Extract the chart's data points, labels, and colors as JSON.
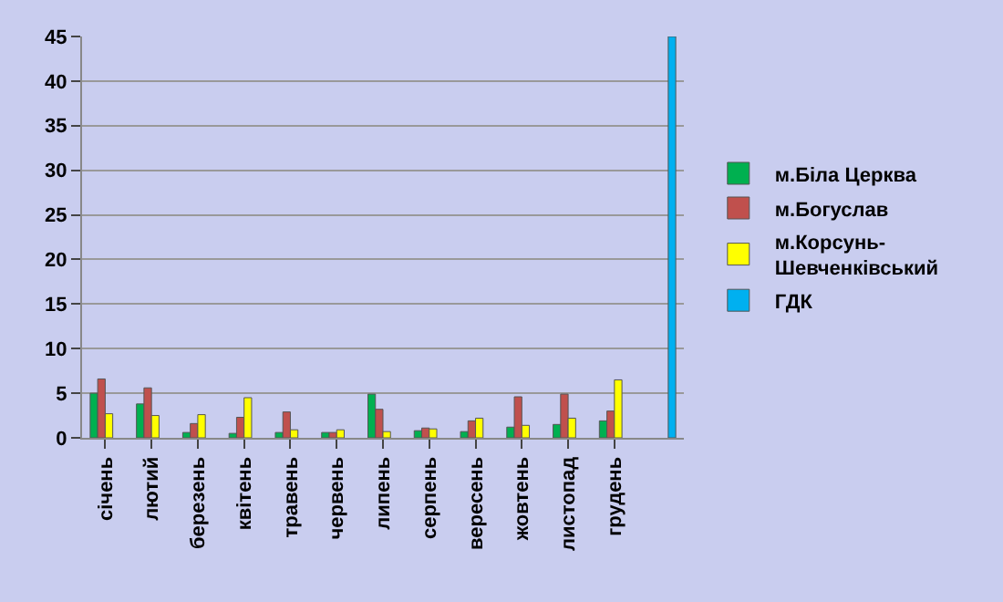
{
  "chart_data": {
    "type": "bar",
    "categories": [
      "січень",
      "лютий",
      "березень",
      "квітень",
      "травень",
      "червень",
      "липень",
      "серпень",
      "вересень",
      "жовтень",
      "листопад",
      "грудень",
      null
    ],
    "series": [
      {
        "name": "м.Біла Церква",
        "color": "#00b050",
        "values": [
          5.0,
          3.8,
          0.6,
          0.5,
          0.6,
          0.6,
          4.9,
          0.8,
          0.7,
          1.2,
          1.5,
          1.9,
          null
        ]
      },
      {
        "name": "м.Богуслав",
        "color": "#c0504d",
        "values": [
          6.6,
          5.6,
          1.6,
          2.3,
          2.9,
          0.6,
          3.2,
          1.1,
          1.9,
          4.6,
          4.9,
          3.0,
          null
        ]
      },
      {
        "name": "м.Корсунь-Шевченківський",
        "color": "#ffff00",
        "values": [
          2.7,
          2.5,
          2.6,
          4.5,
          0.9,
          0.9,
          0.7,
          1.0,
          2.2,
          1.4,
          2.2,
          6.5,
          null
        ]
      },
      {
        "name": "ГДК",
        "color": "#00b0f0",
        "values": [
          null,
          null,
          null,
          null,
          null,
          null,
          null,
          null,
          null,
          null,
          null,
          null,
          45
        ]
      }
    ],
    "ylim": [
      0,
      45
    ],
    "yticks": [
      0,
      5,
      10,
      15,
      20,
      25,
      30,
      35,
      40,
      45
    ],
    "grid": "y",
    "legend": "right"
  }
}
